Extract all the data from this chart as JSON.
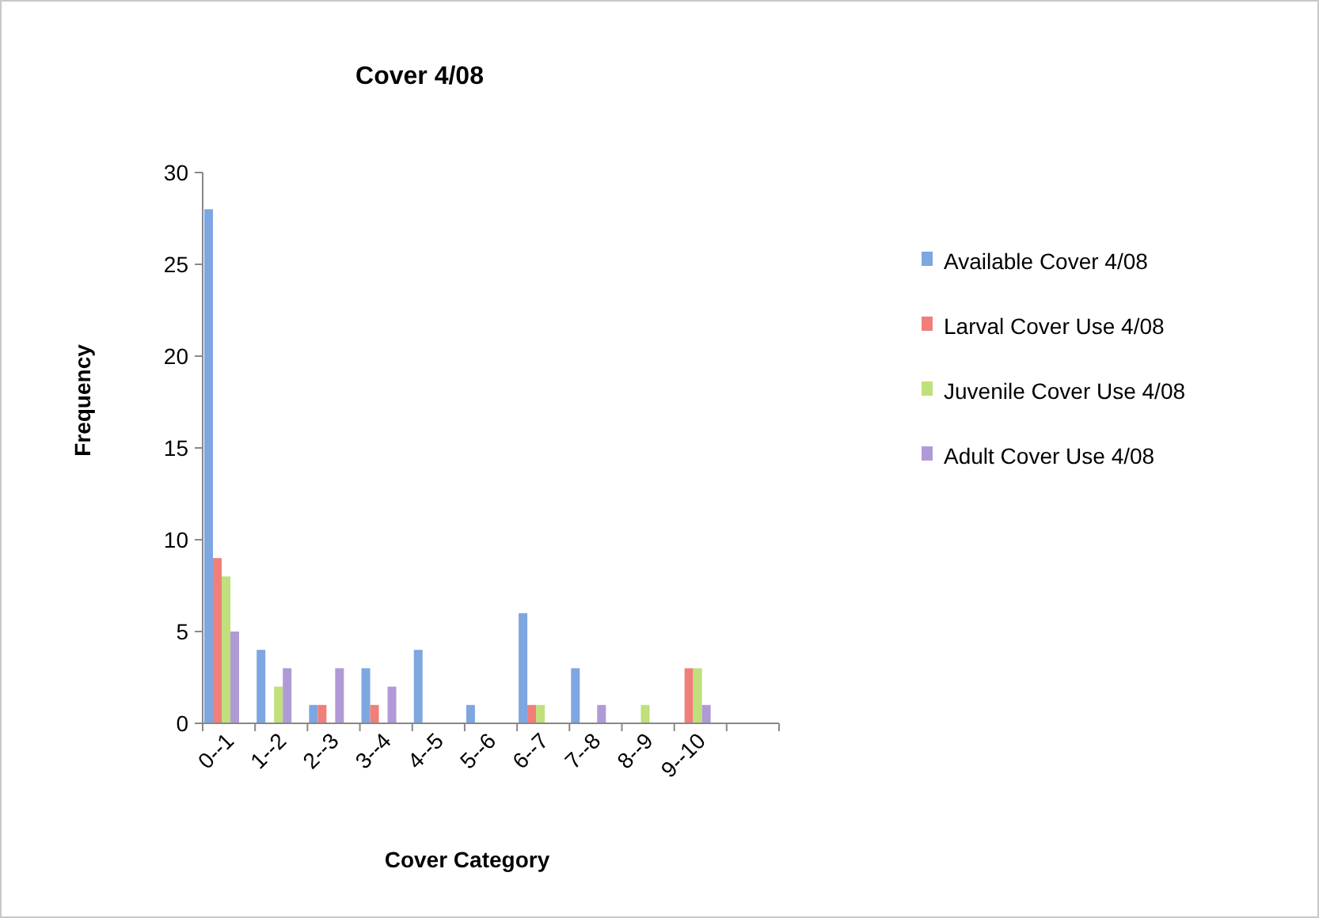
{
  "chart_data": {
    "type": "bar",
    "title": "Cover 4/08",
    "xlabel": "Cover Category",
    "ylabel": "Frequency",
    "categories": [
      "0--1",
      "1--2",
      "2--3",
      "3--4",
      "4--5",
      "5--6",
      "6--7",
      "7--8",
      "8--9",
      "9--10",
      null
    ],
    "series": [
      {
        "name": "Available Cover 4/08",
        "color": "#7ea6e0",
        "values": [
          28,
          4,
          1,
          3,
          4,
          1,
          6,
          3,
          0,
          0,
          0
        ]
      },
      {
        "name": "Larval Cover Use 4/08",
        "color": "#f07f7a",
        "values": [
          9,
          0,
          1,
          1,
          0,
          0,
          1,
          0,
          0,
          3,
          0
        ]
      },
      {
        "name": "Juvenile Cover Use 4/08",
        "color": "#bfe07a",
        "values": [
          8,
          2,
          0,
          0,
          0,
          0,
          1,
          0,
          1,
          3,
          0
        ]
      },
      {
        "name": "Adult Cover Use 4/08",
        "color": "#b09ad6",
        "values": [
          5,
          3,
          3,
          2,
          0,
          0,
          0,
          1,
          0,
          1,
          0
        ]
      }
    ],
    "ylim": [
      0,
      30
    ],
    "yticks": [
      0,
      5,
      10,
      15,
      20,
      25,
      30
    ],
    "grid": false,
    "legend": "right"
  }
}
